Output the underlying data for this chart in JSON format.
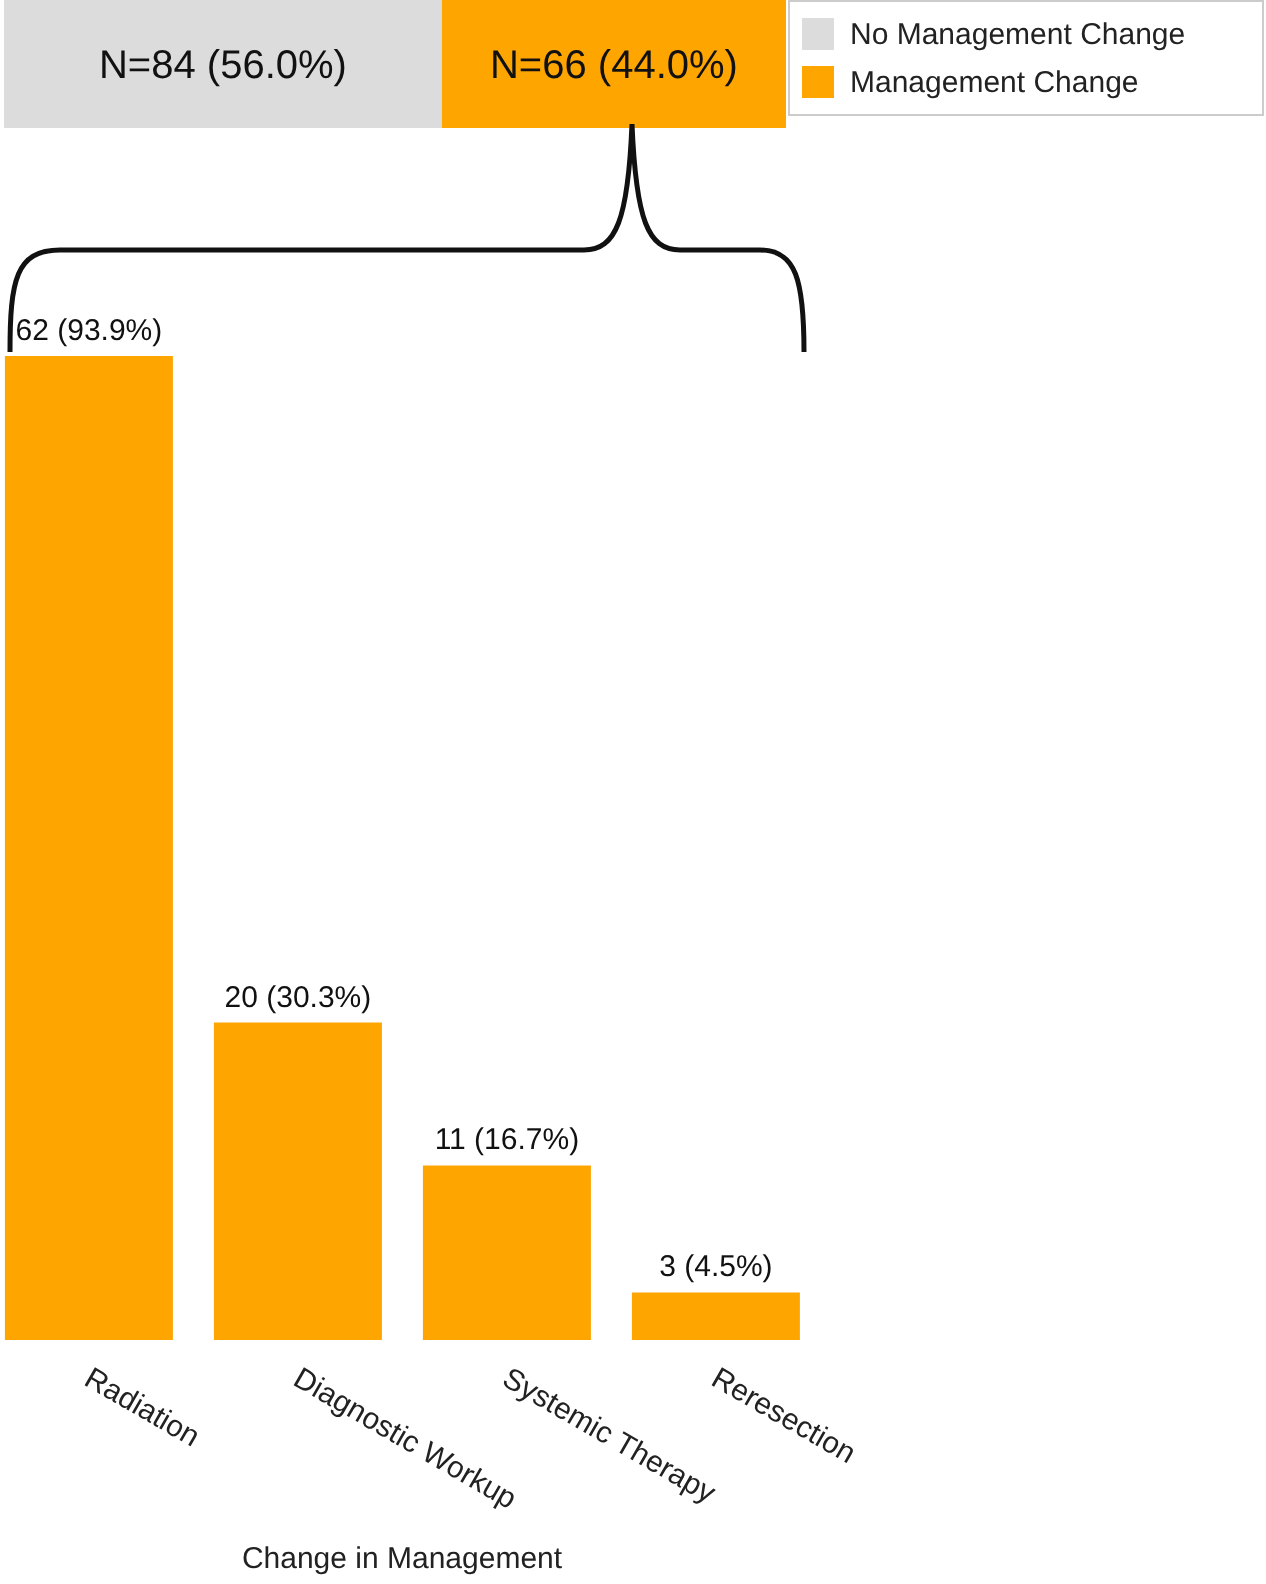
{
  "chart_data": [
    {
      "type": "bar",
      "orientation": "horizontal",
      "stacked": true,
      "categories": [
        null
      ],
      "legend": "right",
      "tick_labels": false,
      "series": [
        {
          "name": "No Management Change",
          "color": "#dcdcdc",
          "values": [
            84
          ],
          "value_labels": [
            "N=84 (56.0%)"
          ]
        },
        {
          "name": "Management Change",
          "color": "#ffa500",
          "values": [
            66
          ],
          "value_labels": [
            "N=66 (44.0%)"
          ]
        }
      ]
    },
    {
      "type": "bar",
      "categories": [
        "Radiation",
        "Diagnostic Workup",
        "Systemic Therapy",
        "Reresection"
      ],
      "values": [
        62,
        20,
        11,
        3
      ],
      "color": "#ffa500",
      "value_labels": [
        "62 (93.9%)",
        "20 (30.3%)",
        "11 (16.7%)",
        "3 (4.5%)"
      ],
      "xlabel": "Change in Management",
      "tick_labels": "x"
    }
  ]
}
